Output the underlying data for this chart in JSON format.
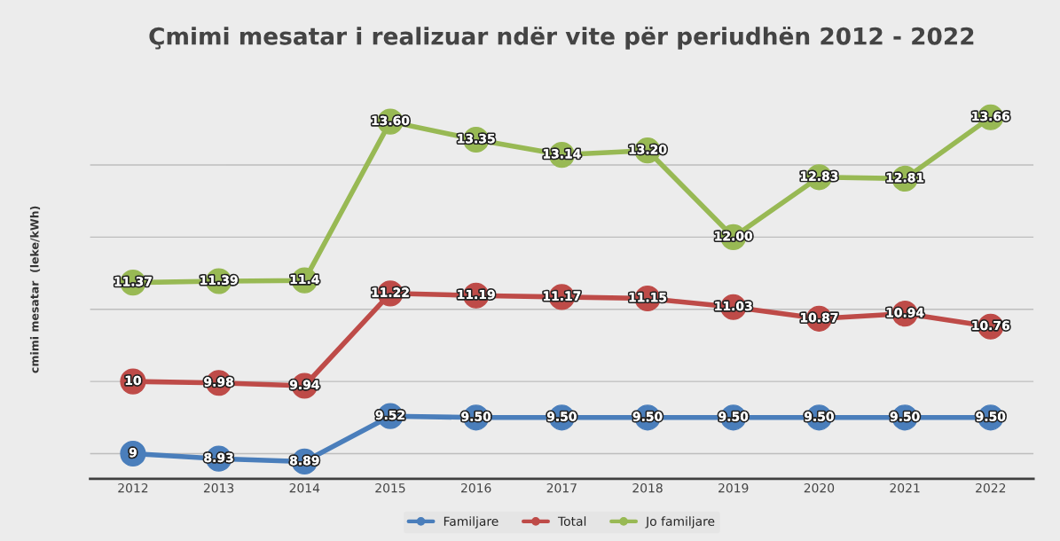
{
  "chart_data": {
    "type": "line",
    "title": "Çmimi mesatar i realizuar ndër vite për periudhën 2012 - 2022",
    "ylabel": "cmimi mesatar  (leke/kWh)",
    "categories": [
      "2012",
      "2013",
      "2014",
      "2015",
      "2016",
      "2017",
      "2018",
      "2019",
      "2020",
      "2021",
      "2022"
    ],
    "series": [
      {
        "name": "Familjare",
        "color": "#4a7ebb",
        "values": [
          9,
          8.93,
          8.89,
          9.52,
          9.5,
          9.5,
          9.5,
          9.5,
          9.5,
          9.5,
          9.5
        ],
        "value_labels": [
          "9",
          "8.93",
          "8.89",
          "9.52",
          "9.50",
          "9.50",
          "9.50",
          "9.50",
          "9.50",
          "9.50",
          "9.50"
        ]
      },
      {
        "name": "Total",
        "color": "#be4b48",
        "values": [
          10,
          9.98,
          9.94,
          11.22,
          11.19,
          11.17,
          11.15,
          11.03,
          10.87,
          10.94,
          10.76
        ],
        "value_labels": [
          "10",
          "9.98",
          "9.94",
          "11.22",
          "11.19",
          "11.17",
          "11.15",
          "11.03",
          "10.87",
          "10.94",
          "10.76"
        ]
      },
      {
        "name": "Jo familjare",
        "color": "#98b954",
        "values": [
          11.37,
          11.39,
          11.4,
          13.6,
          13.35,
          13.14,
          13.2,
          12.0,
          12.83,
          12.81,
          13.66
        ],
        "value_labels": [
          "11.37",
          "11.39",
          "11.4",
          "13.60",
          "13.35",
          "13.14",
          "13.20",
          "12.00",
          "12.83",
          "12.81",
          "13.66"
        ]
      }
    ],
    "tick_labels": "x",
    "grid": "y",
    "legend": "bottom",
    "marker": "circle",
    "line_style": "solid"
  }
}
